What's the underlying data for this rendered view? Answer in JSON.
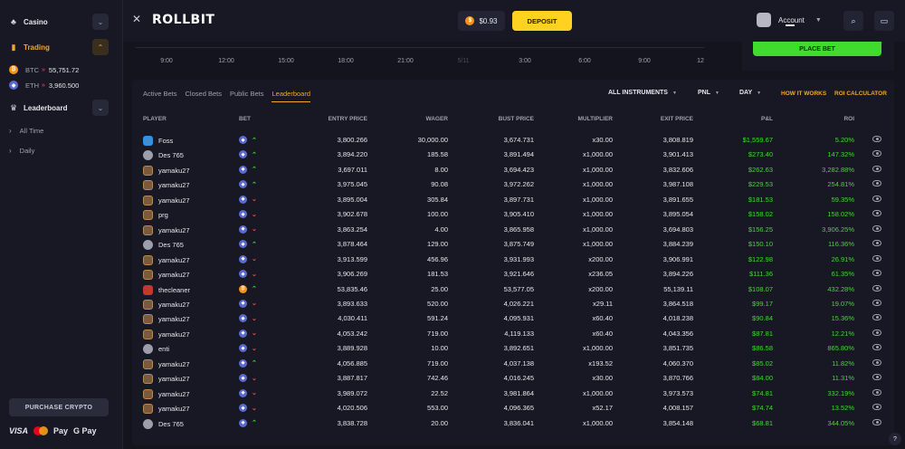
{
  "sidebar": {
    "casino_label": "Casino",
    "trading_label": "Trading",
    "assets": [
      {
        "name": "BTC",
        "price": "55,751.72"
      },
      {
        "name": "ETH",
        "price": "3,960.500"
      }
    ],
    "leaderboard_label": "Leaderboard",
    "sub_items": [
      "All Time",
      "Daily"
    ],
    "purchase_label": "PURCHASE CRYPTO",
    "payments": {
      "visa": "VISA",
      "apple": "Pay",
      "google": "G Pay"
    }
  },
  "header": {
    "logo": "ROLLBIT",
    "balance": "$0.93",
    "deposit_label": "DEPOSIT",
    "account_label": "Account"
  },
  "chart_strip": {
    "times": [
      "9:00",
      "12:00",
      "15:00",
      "18:00",
      "21:00",
      "5/11",
      "3:00",
      "6:00",
      "9:00",
      "12"
    ]
  },
  "place_bet_label": "PLACE BET",
  "tabs": [
    "Active Bets",
    "Closed Bets",
    "Public Bets",
    "Leaderboard"
  ],
  "active_tab": "Leaderboard",
  "filters": {
    "instruments": "ALL INSTRUMENTS",
    "pnl": "PNL",
    "day": "DAY"
  },
  "links": {
    "how": "HOW IT WORKS",
    "roi": "ROI CALCULATOR"
  },
  "columns": {
    "player": "PLAYER",
    "bet": "BET",
    "entry": "ENTRY PRICE",
    "wager": "WAGER",
    "bust": "BUST PRICE",
    "mult": "MULTIPLIER",
    "exit": "EXIT PRICE",
    "pnl": "P&L",
    "roi": "ROI"
  },
  "rows": [
    {
      "player": "Foss",
      "av": "blue",
      "asset": "eth",
      "dir": "up",
      "entry": "3,800.266",
      "wager": "30,000.00",
      "bust": "3,674.731",
      "mult": "x30.00",
      "exit": "3,808.819",
      "pnl": "$1,559.67",
      "roi": "5.20%"
    },
    {
      "player": "Des 765",
      "av": "gray",
      "asset": "eth",
      "dir": "up",
      "entry": "3,894.220",
      "wager": "185.58",
      "bust": "3,891.494",
      "mult": "x1,000.00",
      "exit": "3,901.413",
      "pnl": "$273.40",
      "roi": "147.32%"
    },
    {
      "player": "yamaku27",
      "av": "hex",
      "asset": "eth",
      "dir": "up",
      "entry": "3,697.011",
      "wager": "8.00",
      "bust": "3,694.423",
      "mult": "x1,000.00",
      "exit": "3,832.606",
      "pnl": "$262.63",
      "roi": "3,282.88%"
    },
    {
      "player": "yamaku27",
      "av": "hex",
      "asset": "eth",
      "dir": "up",
      "entry": "3,975.045",
      "wager": "90.08",
      "bust": "3,972.262",
      "mult": "x1,000.00",
      "exit": "3,987.108",
      "pnl": "$229.53",
      "roi": "254.81%"
    },
    {
      "player": "yamaku27",
      "av": "hex",
      "asset": "eth",
      "dir": "down",
      "entry": "3,895.004",
      "wager": "305.84",
      "bust": "3,897.731",
      "mult": "x1,000.00",
      "exit": "3,891.655",
      "pnl": "$181.53",
      "roi": "59.35%"
    },
    {
      "player": "prg",
      "av": "hex",
      "asset": "eth",
      "dir": "down",
      "entry": "3,902.678",
      "wager": "100.00",
      "bust": "3,905.410",
      "mult": "x1,000.00",
      "exit": "3,895.054",
      "pnl": "$158.02",
      "roi": "158.02%"
    },
    {
      "player": "yamaku27",
      "av": "hex",
      "asset": "eth",
      "dir": "down",
      "entry": "3,863.254",
      "wager": "4.00",
      "bust": "3,865.958",
      "mult": "x1,000.00",
      "exit": "3,694.803",
      "pnl": "$156.25",
      "roi": "3,906.25%"
    },
    {
      "player": "Des 765",
      "av": "gray",
      "asset": "eth",
      "dir": "up",
      "entry": "3,878.464",
      "wager": "129.00",
      "bust": "3,875.749",
      "mult": "x1,000.00",
      "exit": "3,884.239",
      "pnl": "$150.10",
      "roi": "116.36%"
    },
    {
      "player": "yamaku27",
      "av": "hex",
      "asset": "eth",
      "dir": "down",
      "entry": "3,913.599",
      "wager": "456.96",
      "bust": "3,931.993",
      "mult": "x200.00",
      "exit": "3,906.991",
      "pnl": "$122.98",
      "roi": "26.91%"
    },
    {
      "player": "yamaku27",
      "av": "hex",
      "asset": "eth",
      "dir": "down",
      "entry": "3,906.269",
      "wager": "181.53",
      "bust": "3,921.646",
      "mult": "x236.05",
      "exit": "3,894.226",
      "pnl": "$111.36",
      "roi": "61.35%"
    },
    {
      "player": "thecleaner",
      "av": "red",
      "asset": "btc",
      "dir": "up",
      "entry": "53,835.46",
      "wager": "25.00",
      "bust": "53,577.05",
      "mult": "x200.00",
      "exit": "55,139.11",
      "pnl": "$108.07",
      "roi": "432.28%"
    },
    {
      "player": "yamaku27",
      "av": "hex",
      "asset": "eth",
      "dir": "down",
      "entry": "3,893.633",
      "wager": "520.00",
      "bust": "4,026.221",
      "mult": "x29.11",
      "exit": "3,864.518",
      "pnl": "$99.17",
      "roi": "19.07%"
    },
    {
      "player": "yamaku27",
      "av": "hex",
      "asset": "eth",
      "dir": "down",
      "entry": "4,030.411",
      "wager": "591.24",
      "bust": "4,095.931",
      "mult": "x60.40",
      "exit": "4,018.238",
      "pnl": "$90.84",
      "roi": "15.36%"
    },
    {
      "player": "yamaku27",
      "av": "hex",
      "asset": "eth",
      "dir": "down",
      "entry": "4,053.242",
      "wager": "719.00",
      "bust": "4,119.133",
      "mult": "x60.40",
      "exit": "4,043.356",
      "pnl": "$87.81",
      "roi": "12.21%"
    },
    {
      "player": "enti",
      "av": "gray",
      "asset": "eth",
      "dir": "down",
      "entry": "3,889.928",
      "wager": "10.00",
      "bust": "3,892.651",
      "mult": "x1,000.00",
      "exit": "3,851.735",
      "pnl": "$86.58",
      "roi": "865.80%"
    },
    {
      "player": "yamaku27",
      "av": "hex",
      "asset": "eth",
      "dir": "up",
      "entry": "4,056.885",
      "wager": "719.00",
      "bust": "4,037.138",
      "mult": "x193.52",
      "exit": "4,060.370",
      "pnl": "$85.02",
      "roi": "11.82%"
    },
    {
      "player": "yamaku27",
      "av": "hex",
      "asset": "eth",
      "dir": "down",
      "entry": "3,887.817",
      "wager": "742.46",
      "bust": "4,016.245",
      "mult": "x30.00",
      "exit": "3,870.766",
      "pnl": "$84.00",
      "roi": "11.31%"
    },
    {
      "player": "yamaku27",
      "av": "hex",
      "asset": "eth",
      "dir": "down",
      "entry": "3,989.072",
      "wager": "22.52",
      "bust": "3,981.864",
      "mult": "x1,000.00",
      "exit": "3,973.573",
      "pnl": "$74.81",
      "roi": "332.19%"
    },
    {
      "player": "yamaku27",
      "av": "hex",
      "asset": "eth",
      "dir": "down",
      "entry": "4,020.506",
      "wager": "553.00",
      "bust": "4,096.365",
      "mult": "x52.17",
      "exit": "4,008.157",
      "pnl": "$74.74",
      "roi": "13.52%"
    },
    {
      "player": "Des 765",
      "av": "gray",
      "asset": "eth",
      "dir": "up",
      "entry": "3,838.728",
      "wager": "20.00",
      "bust": "3,836.041",
      "mult": "x1,000.00",
      "exit": "3,854.148",
      "pnl": "$68.81",
      "roi": "344.05%"
    }
  ]
}
